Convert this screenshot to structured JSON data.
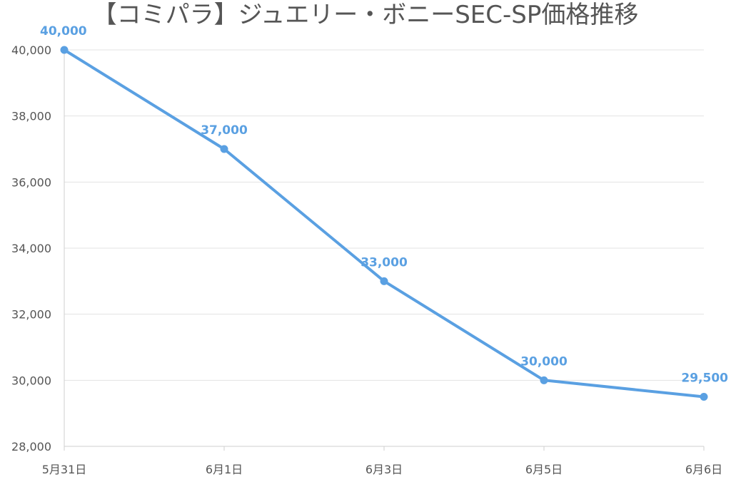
{
  "chart_data": {
    "type": "line",
    "title": "【コミパラ】ジュエリー・ボニーSEC-SP価格推移",
    "xlabel": "",
    "ylabel": "",
    "categories": [
      "5月31日",
      "6月1日",
      "6月3日",
      "6月5日",
      "6月6日"
    ],
    "series": [
      {
        "values": [
          40000,
          37000,
          33000,
          30000,
          29500
        ],
        "data_labels": [
          "40,000",
          "37,000",
          "33,000",
          "30,000",
          "29,500"
        ]
      }
    ],
    "ylim": [
      28000,
      40000
    ],
    "yticks": [
      28000,
      30000,
      32000,
      34000,
      36000,
      38000,
      40000
    ],
    "ytick_labels": [
      "28,000",
      "30,000",
      "32,000",
      "34,000",
      "36,000",
      "38,000",
      "40,000"
    ],
    "grid": true,
    "legend": "none",
    "colors": {
      "series": "#5aa0e2",
      "grid": "#e3e3e3",
      "text": "#555555"
    }
  }
}
